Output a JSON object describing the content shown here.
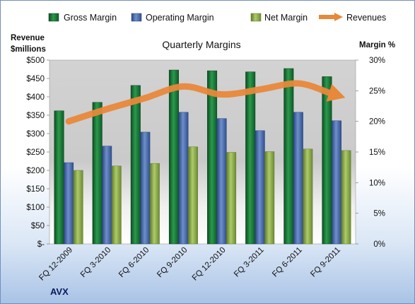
{
  "chart_data": {
    "type": "bar",
    "title": "Quarterly Margins",
    "source": "AVX",
    "y_left_label_1": "Revenue",
    "y_left_label_2": "$millions",
    "y_right_label": "Margin %",
    "ylim_left": [
      0,
      500
    ],
    "ylim_right": [
      0,
      30
    ],
    "y_left_ticks": [
      "$-",
      "$50",
      "$100",
      "$150",
      "$200",
      "$250",
      "$300",
      "$350",
      "$400",
      "$450",
      "$500"
    ],
    "y_right_ticks": [
      "0%",
      "5%",
      "10%",
      "15%",
      "20%",
      "25%",
      "30%"
    ],
    "categories": [
      "FQ 12-2009",
      "FQ 3-2010",
      "FQ 6-2010",
      "FQ 9-2010",
      "FQ 12-2010",
      "FQ 3-2011",
      "FQ 6-2011",
      "FQ 9-2011"
    ],
    "series": [
      {
        "name": "Gross Margin",
        "axis": "left",
        "kind": "bar",
        "color": "#1e7b3c",
        "values": [
          362,
          385,
          431,
          473,
          471,
          468,
          477,
          455
        ]
      },
      {
        "name": "Operating Margin",
        "axis": "left",
        "kind": "bar",
        "color": "#4f6fb0",
        "values": [
          221,
          266,
          304,
          358,
          341,
          308,
          358,
          335
        ]
      },
      {
        "name": "Net Margin",
        "axis": "left",
        "kind": "bar",
        "color": "#8daa4e",
        "values": [
          200,
          212,
          219,
          264,
          249,
          251,
          258,
          254
        ]
      },
      {
        "name": "Revenues",
        "axis": "right",
        "kind": "line",
        "color": "#e8883a",
        "values": [
          20.0,
          22.0,
          23.8,
          25.7,
          24.4,
          25.2,
          26.2,
          24.3
        ]
      }
    ],
    "grid": false,
    "legend_position": "top"
  }
}
